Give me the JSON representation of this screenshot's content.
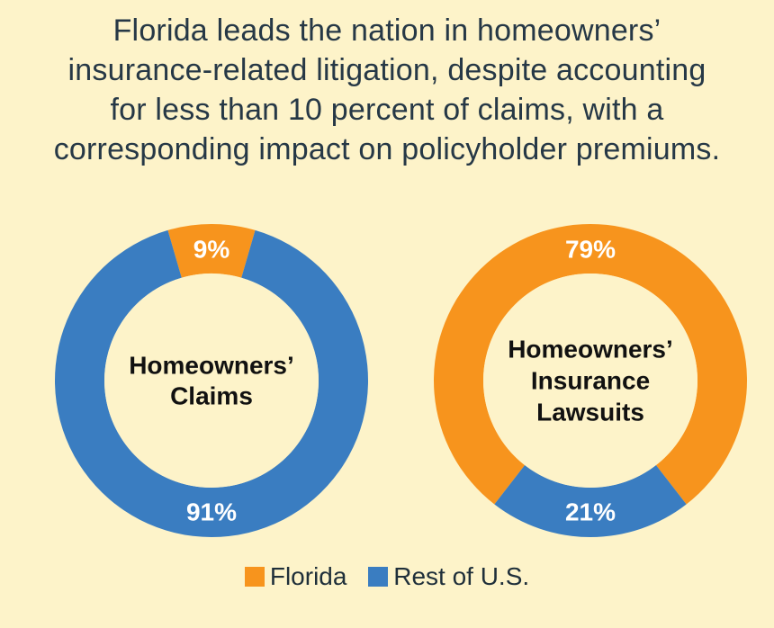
{
  "header": {
    "title_lines": [
      "Florida leads the nation in homeowners’",
      "insurance-related litigation, despite accounting",
      "for less than 10 percent of claims, with a",
      "corresponding impact on policyholder premiums."
    ]
  },
  "legend": {
    "items": [
      {
        "label": "Florida",
        "color": "#f7941d"
      },
      {
        "label": "Rest of U.S.",
        "color": "#3a7dc1"
      }
    ]
  },
  "chart_data": [
    {
      "type": "pie",
      "title": "",
      "center_label": [
        "Homeowners’",
        "Claims"
      ],
      "categories": [
        "Florida",
        "Rest of U.S."
      ],
      "values": [
        9,
        91
      ],
      "value_labels": [
        "9%",
        "91%"
      ],
      "colors": [
        "#f7941d",
        "#3a7dc1"
      ],
      "legend": "bottom"
    },
    {
      "type": "pie",
      "title": "",
      "center_label": [
        "Homeowners’",
        "Insurance",
        "Lawsuits"
      ],
      "categories": [
        "Florida",
        "Rest of U.S."
      ],
      "values": [
        79,
        21
      ],
      "value_labels": [
        "79%",
        "21%"
      ],
      "colors": [
        "#f7941d",
        "#3a7dc1"
      ],
      "legend": "bottom"
    }
  ]
}
